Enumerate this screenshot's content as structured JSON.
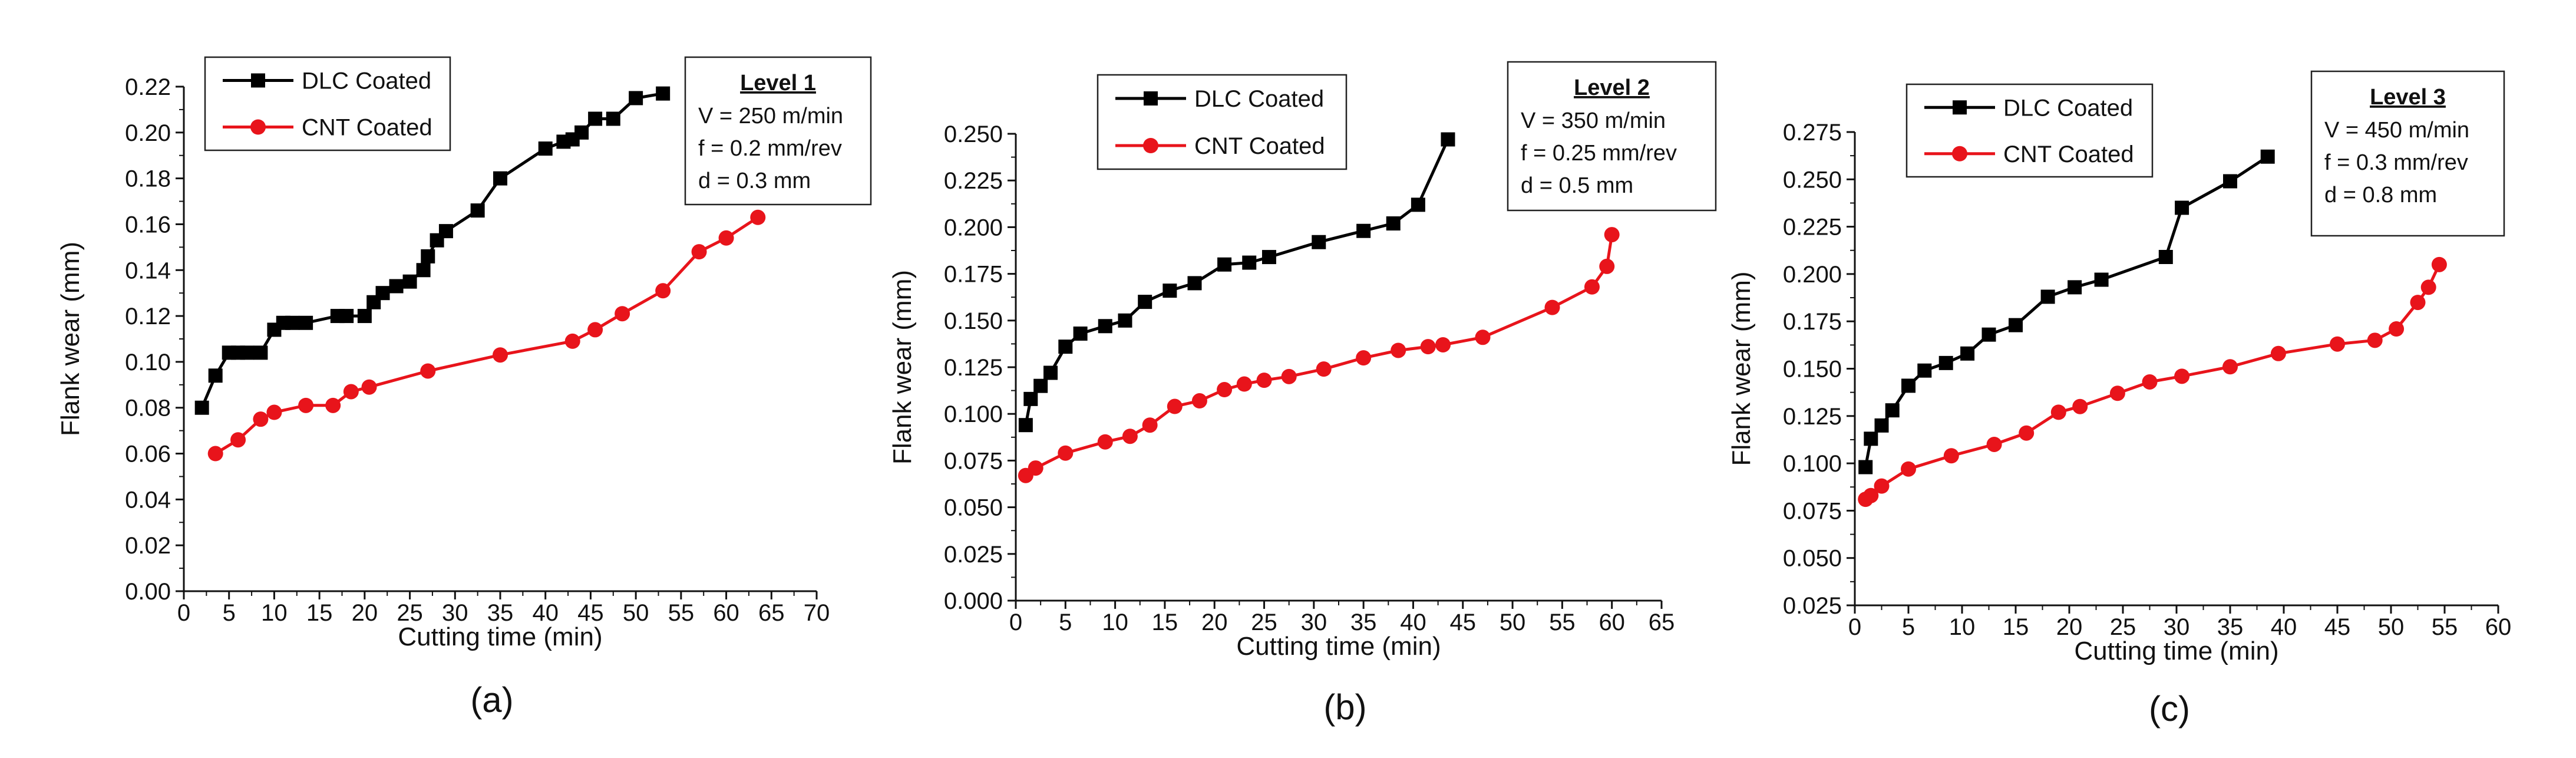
{
  "figure": {
    "panels": [
      {
        "panel_label": "(a)",
        "info": {
          "level": "Level 1",
          "lines": [
            "V = 250 m/min",
            "f = 0.2 mm/rev",
            "d = 0.3 mm"
          ]
        }
      },
      {
        "panel_label": "(b)",
        "info": {
          "level": "Level 2",
          "lines": [
            "V = 350 m/min",
            "f = 0.25 mm/rev",
            "d = 0.5 mm"
          ]
        }
      },
      {
        "panel_label": "(c)",
        "info": {
          "level": "Level 3",
          "lines": [
            "V = 450 m/min",
            "f = 0.3 mm/rev",
            "d = 0.8 mm"
          ]
        }
      }
    ]
  },
  "colors": {
    "dlc": "#000000",
    "cnt": "#e8141b",
    "axis": "#111111"
  },
  "chart_data": [
    {
      "type": "line",
      "xlabel": "Cutting time (min)",
      "ylabel": "Flank wear (mm)",
      "xlim": [
        0,
        70
      ],
      "ylim": [
        0,
        0.22
      ],
      "xticks": [
        "0",
        "5",
        "10",
        "15",
        "20",
        "25",
        "30",
        "35",
        "40",
        "45",
        "50",
        "55",
        "60",
        "65",
        "70"
      ],
      "yticks": [
        "0.00",
        "0.02",
        "0.04",
        "0.06",
        "0.08",
        "0.10",
        "0.12",
        "0.14",
        "0.16",
        "0.18",
        "0.20",
        "0.22"
      ],
      "legend": "top-left",
      "series": [
        {
          "name": "DLC Coated",
          "marker": "square",
          "x": [
            2,
            3.5,
            5,
            6,
            7,
            8.5,
            10,
            11,
            12,
            13.5,
            17,
            18,
            20,
            21,
            22,
            23.5,
            25,
            26.5,
            27,
            28,
            29,
            32.5,
            35,
            40,
            42,
            43,
            44,
            45.5,
            47.5,
            50,
            53
          ],
          "y": [
            0.08,
            0.094,
            0.104,
            0.104,
            0.104,
            0.104,
            0.114,
            0.117,
            0.117,
            0.117,
            0.12,
            0.12,
            0.12,
            0.126,
            0.13,
            0.133,
            0.135,
            0.14,
            0.146,
            0.153,
            0.157,
            0.166,
            0.18,
            0.193,
            0.196,
            0.197,
            0.2,
            0.206,
            0.206,
            0.215,
            0.217
          ]
        },
        {
          "name": "CNT Coated",
          "marker": "circle",
          "x": [
            3.5,
            6,
            8.5,
            10,
            13.5,
            16.5,
            18.5,
            20.5,
            27,
            35,
            43,
            45.5,
            48.5,
            53,
            57,
            60,
            63.5
          ],
          "y": [
            0.06,
            0.066,
            0.075,
            0.078,
            0.081,
            0.081,
            0.087,
            0.089,
            0.096,
            0.103,
            0.109,
            0.114,
            0.121,
            0.131,
            0.148,
            0.154,
            0.163
          ]
        }
      ]
    },
    {
      "type": "line",
      "xlabel": "Cutting time (min)",
      "ylabel": "Flank wear (mm)",
      "xlim": [
        0,
        65
      ],
      "ylim": [
        0,
        0.25
      ],
      "xticks": [
        "0",
        "5",
        "10",
        "15",
        "20",
        "25",
        "30",
        "35",
        "40",
        "45",
        "50",
        "55",
        "60",
        "65"
      ],
      "yticks": [
        "0.000",
        "0.025",
        "0.050",
        "0.075",
        "0.100",
        "0.125",
        "0.150",
        "0.175",
        "0.200",
        "0.225",
        "0.250"
      ],
      "legend": "top-left",
      "series": [
        {
          "name": "DLC Coated",
          "marker": "square",
          "x": [
            1,
            1.5,
            2.5,
            3.5,
            5,
            6.5,
            9,
            11,
            13,
            15.5,
            18,
            21,
            23.5,
            25.5,
            30.5,
            35,
            38,
            40.5,
            43.5
          ],
          "y": [
            0.094,
            0.108,
            0.115,
            0.122,
            0.136,
            0.143,
            0.147,
            0.15,
            0.16,
            0.166,
            0.17,
            0.18,
            0.181,
            0.184,
            0.192,
            0.198,
            0.202,
            0.212,
            0.247
          ]
        },
        {
          "name": "CNT Coated",
          "marker": "circle",
          "x": [
            1,
            2,
            5,
            9,
            11.5,
            13.5,
            16,
            18.5,
            21,
            23,
            25,
            27.5,
            31,
            35,
            38.5,
            41.5,
            43,
            47,
            54,
            58,
            59.5,
            60
          ],
          "y": [
            0.067,
            0.071,
            0.079,
            0.085,
            0.088,
            0.094,
            0.104,
            0.107,
            0.113,
            0.116,
            0.118,
            0.12,
            0.124,
            0.13,
            0.134,
            0.136,
            0.137,
            0.141,
            0.157,
            0.168,
            0.179,
            0.196
          ]
        }
      ]
    },
    {
      "type": "line",
      "xlabel": "Cutting time (min)",
      "ylabel": "Flank wear (mm)",
      "xlim": [
        0,
        60
      ],
      "ylim": [
        0.025,
        0.275
      ],
      "xticks": [
        "0",
        "5",
        "10",
        "15",
        "20",
        "25",
        "30",
        "35",
        "40",
        "45",
        "50",
        "55",
        "60"
      ],
      "yticks": [
        "0.025",
        "0.050",
        "0.075",
        "0.100",
        "0.125",
        "0.150",
        "0.175",
        "0.200",
        "0.225",
        "0.250",
        "0.275"
      ],
      "legend": "top-left",
      "series": [
        {
          "name": "DLC Coated",
          "marker": "square",
          "x": [
            1,
            1.5,
            2.5,
            3.5,
            5,
            6.5,
            8.5,
            10.5,
            12.5,
            15,
            18,
            20.5,
            23,
            29,
            30.5,
            35,
            38.5
          ],
          "y": [
            0.098,
            0.113,
            0.12,
            0.128,
            0.141,
            0.149,
            0.153,
            0.158,
            0.168,
            0.173,
            0.188,
            0.193,
            0.197,
            0.209,
            0.235,
            0.249,
            0.262
          ]
        },
        {
          "name": "CNT Coated",
          "marker": "circle",
          "x": [
            1,
            1.5,
            2.5,
            5,
            9,
            13,
            16,
            19,
            21,
            24.5,
            27.5,
            30.5,
            35,
            39.5,
            45,
            48.5,
            50.5,
            52.5,
            53.5,
            54.5
          ],
          "y": [
            0.081,
            0.083,
            0.088,
            0.097,
            0.104,
            0.11,
            0.116,
            0.127,
            0.13,
            0.137,
            0.143,
            0.146,
            0.151,
            0.158,
            0.163,
            0.165,
            0.171,
            0.185,
            0.193,
            0.205
          ]
        }
      ]
    }
  ]
}
